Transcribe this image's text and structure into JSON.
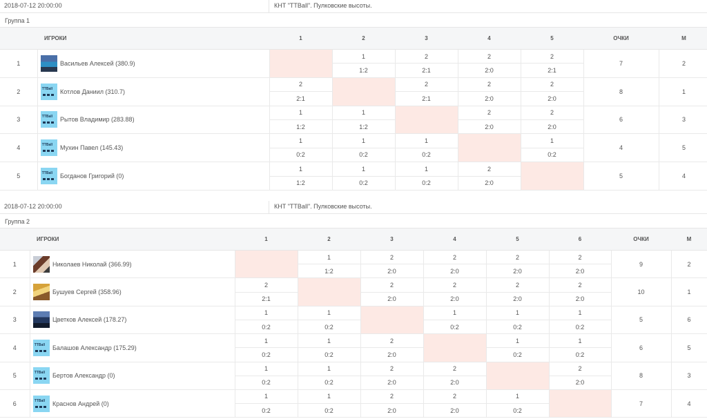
{
  "groups": [
    {
      "date": "2018-07-12 20:00:00",
      "place": "КНТ \"TTBall\". Пулковские высоты.",
      "name": "Группа 1",
      "headers": {
        "players": "ИГРОКИ",
        "points": "ОЧКИ",
        "place": "М"
      },
      "columns": [
        "1",
        "2",
        "3",
        "4",
        "5"
      ],
      "players": [
        {
          "num": "1",
          "name": "Васильев Алексей (380.9)",
          "avatar": "photo-avatar",
          "points": "7",
          "place": "2",
          "results": [
            [
              "",
              ""
            ],
            [
              "1",
              "1:2"
            ],
            [
              "2",
              "2:1"
            ],
            [
              "2",
              "2:0"
            ],
            [
              "2",
              "2:1"
            ]
          ]
        },
        {
          "num": "2",
          "name": "Котлов Даниил (310.7)",
          "avatar": "ttball-logo-avatar",
          "points": "8",
          "place": "1",
          "results": [
            [
              "2",
              "2:1"
            ],
            [
              "",
              ""
            ],
            [
              "2",
              "2:1"
            ],
            [
              "2",
              "2:0"
            ],
            [
              "2",
              "2:0"
            ]
          ]
        },
        {
          "num": "3",
          "name": "Рытов Владимир (283.88)",
          "avatar": "ttball-logo-avatar",
          "points": "6",
          "place": "3",
          "results": [
            [
              "1",
              "1:2"
            ],
            [
              "1",
              "1:2"
            ],
            [
              "",
              ""
            ],
            [
              "2",
              "2:0"
            ],
            [
              "2",
              "2:0"
            ]
          ]
        },
        {
          "num": "4",
          "name": "Мухин Павел (145.43)",
          "avatar": "ttball-logo-avatar",
          "points": "4",
          "place": "5",
          "results": [
            [
              "1",
              "0:2"
            ],
            [
              "1",
              "0:2"
            ],
            [
              "1",
              "0:2"
            ],
            [
              "",
              ""
            ],
            [
              "1",
              "0:2"
            ]
          ]
        },
        {
          "num": "5",
          "name": "Богданов Григорий (0)",
          "avatar": "ttball-logo-avatar",
          "points": "5",
          "place": "4",
          "results": [
            [
              "1",
              "1:2"
            ],
            [
              "1",
              "0:2"
            ],
            [
              "1",
              "0:2"
            ],
            [
              "2",
              "2:0"
            ],
            [
              "",
              ""
            ]
          ]
        }
      ]
    },
    {
      "date": "2018-07-12 20:00:00",
      "place": "КНТ \"TTBall\". Пулковские высоты.",
      "name": "Группа 2",
      "headers": {
        "players": "ИГРОКИ",
        "points": "ОЧКИ",
        "place": "М"
      },
      "columns": [
        "1",
        "2",
        "3",
        "4",
        "5",
        "6"
      ],
      "players": [
        {
          "num": "1",
          "name": "Николаев Николай (366.99)",
          "avatar": "photo-avatar",
          "points": "9",
          "place": "2",
          "results": [
            [
              "",
              ""
            ],
            [
              "1",
              "1:2"
            ],
            [
              "2",
              "2:0"
            ],
            [
              "2",
              "2:0"
            ],
            [
              "2",
              "2:0"
            ],
            [
              "2",
              "2:0"
            ]
          ]
        },
        {
          "num": "2",
          "name": "Бушуев Сергей (358.96)",
          "avatar": "photo-avatar",
          "points": "10",
          "place": "1",
          "results": [
            [
              "2",
              "2:1"
            ],
            [
              "",
              ""
            ],
            [
              "2",
              "2:0"
            ],
            [
              "2",
              "2:0"
            ],
            [
              "2",
              "2:0"
            ],
            [
              "2",
              "2:0"
            ]
          ]
        },
        {
          "num": "3",
          "name": "Цветков Алексей (178.27)",
          "avatar": "photo-avatar",
          "points": "5",
          "place": "6",
          "results": [
            [
              "1",
              "0:2"
            ],
            [
              "1",
              "0:2"
            ],
            [
              "",
              ""
            ],
            [
              "1",
              "0:2"
            ],
            [
              "1",
              "0:2"
            ],
            [
              "1",
              "0:2"
            ]
          ]
        },
        {
          "num": "4",
          "name": "Балашов Александр (175.29)",
          "avatar": "ttball-logo-avatar",
          "points": "6",
          "place": "5",
          "results": [
            [
              "1",
              "0:2"
            ],
            [
              "1",
              "0:2"
            ],
            [
              "2",
              "2:0"
            ],
            [
              "",
              ""
            ],
            [
              "1",
              "0:2"
            ],
            [
              "1",
              "0:2"
            ]
          ]
        },
        {
          "num": "5",
          "name": "Бертов Александр (0)",
          "avatar": "ttball-logo-avatar",
          "points": "8",
          "place": "3",
          "results": [
            [
              "1",
              "0:2"
            ],
            [
              "1",
              "0:2"
            ],
            [
              "2",
              "2:0"
            ],
            [
              "2",
              "2:0"
            ],
            [
              "",
              ""
            ],
            [
              "2",
              "2:0"
            ]
          ]
        },
        {
          "num": "6",
          "name": "Краснов Андрей (0)",
          "avatar": "ttball-logo-avatar",
          "points": "7",
          "place": "4",
          "results": [
            [
              "1",
              "0:2"
            ],
            [
              "1",
              "0:2"
            ],
            [
              "2",
              "2:0"
            ],
            [
              "2",
              "2:0"
            ],
            [
              "1",
              "0:2"
            ],
            [
              "",
              ""
            ]
          ]
        }
      ]
    }
  ]
}
